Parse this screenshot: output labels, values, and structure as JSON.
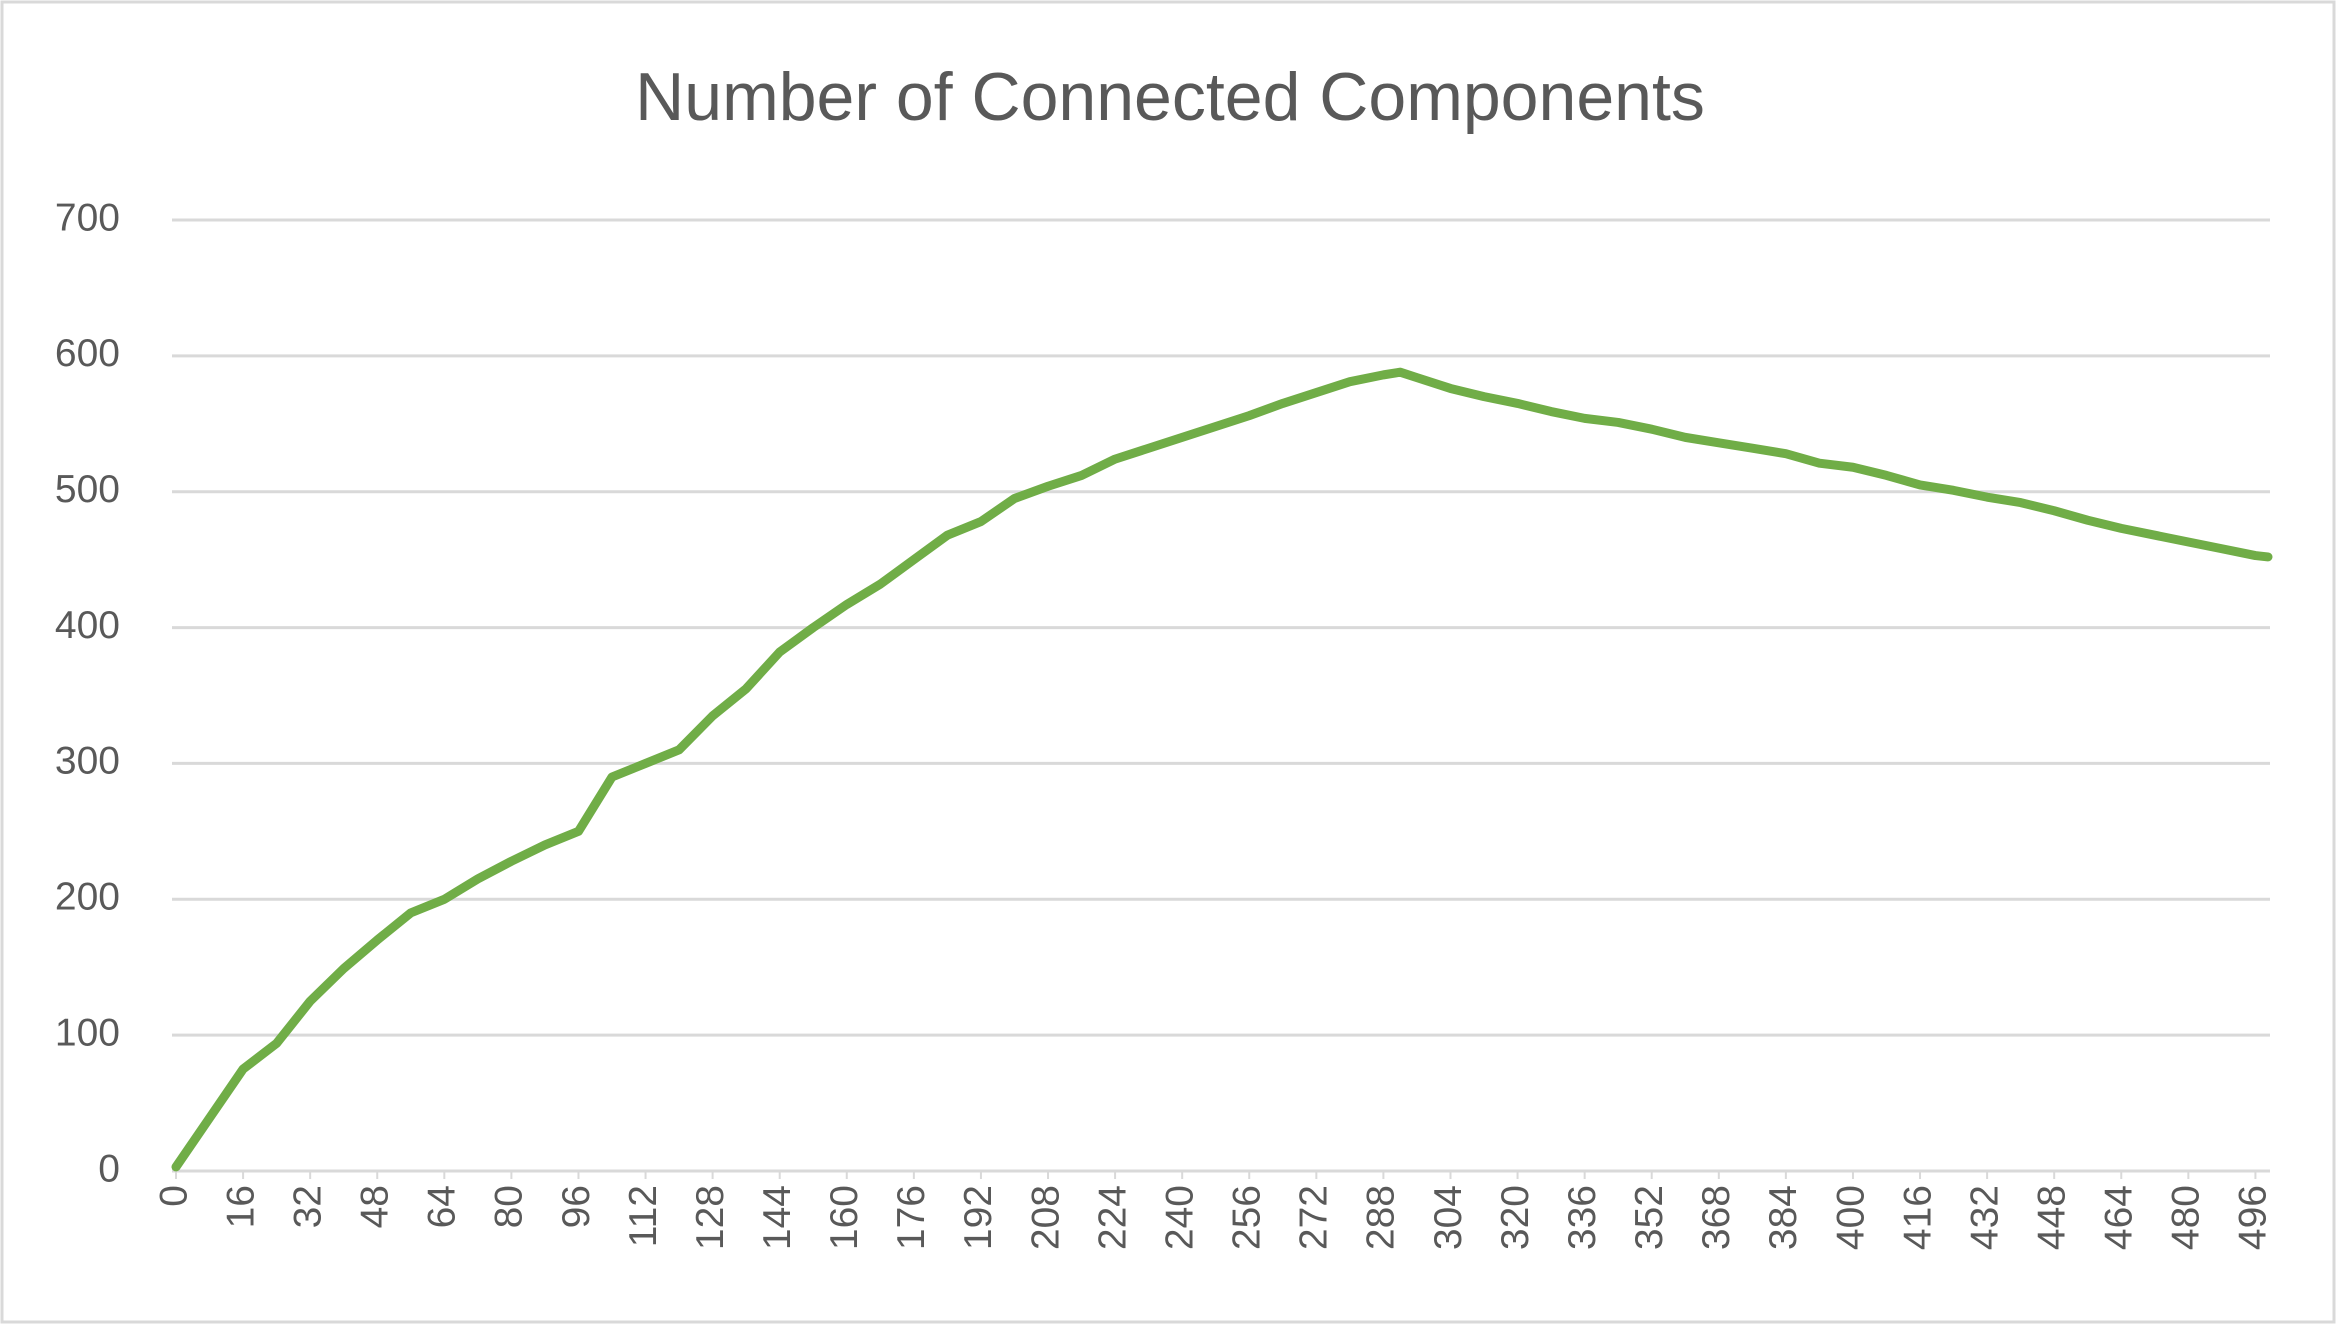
{
  "chart_data": {
    "type": "line",
    "title": "Number of Connected Components",
    "x": [
      0,
      8,
      16,
      24,
      32,
      40,
      48,
      56,
      64,
      72,
      80,
      88,
      96,
      104,
      112,
      120,
      128,
      136,
      144,
      152,
      160,
      168,
      176,
      184,
      192,
      200,
      208,
      216,
      224,
      232,
      240,
      248,
      256,
      264,
      272,
      280,
      288,
      292,
      296,
      304,
      312,
      320,
      328,
      336,
      344,
      352,
      360,
      368,
      376,
      384,
      392,
      400,
      408,
      416,
      424,
      432,
      440,
      448,
      456,
      464,
      472,
      480,
      488,
      496,
      499
    ],
    "series": [
      {
        "color": "#70ad47",
        "values": [
          3,
          39,
          75,
          94,
          125,
          149,
          170,
          190,
          200,
          215,
          228,
          240,
          250,
          290,
          300,
          310,
          335,
          355,
          382,
          400,
          417,
          432,
          450,
          468,
          478,
          495,
          504,
          512,
          524,
          532,
          540,
          548,
          556,
          565,
          573,
          581,
          586,
          588,
          584,
          576,
          570,
          565,
          559,
          554,
          551,
          546,
          540,
          536,
          532,
          528,
          521,
          518,
          512,
          505,
          501,
          496,
          492,
          486,
          479,
          473,
          468,
          463,
          458,
          453,
          452
        ]
      }
    ],
    "xlim": [
      0,
      499
    ],
    "xticks": [
      0,
      16,
      32,
      48,
      64,
      80,
      96,
      112,
      128,
      144,
      160,
      176,
      192,
      208,
      224,
      240,
      256,
      272,
      288,
      304,
      320,
      336,
      352,
      368,
      384,
      400,
      416,
      432,
      448,
      464,
      480,
      496
    ],
    "ylim": [
      0,
      700
    ],
    "yticks": [
      0,
      100,
      200,
      300,
      400,
      500,
      600,
      700
    ],
    "grid": true
  }
}
